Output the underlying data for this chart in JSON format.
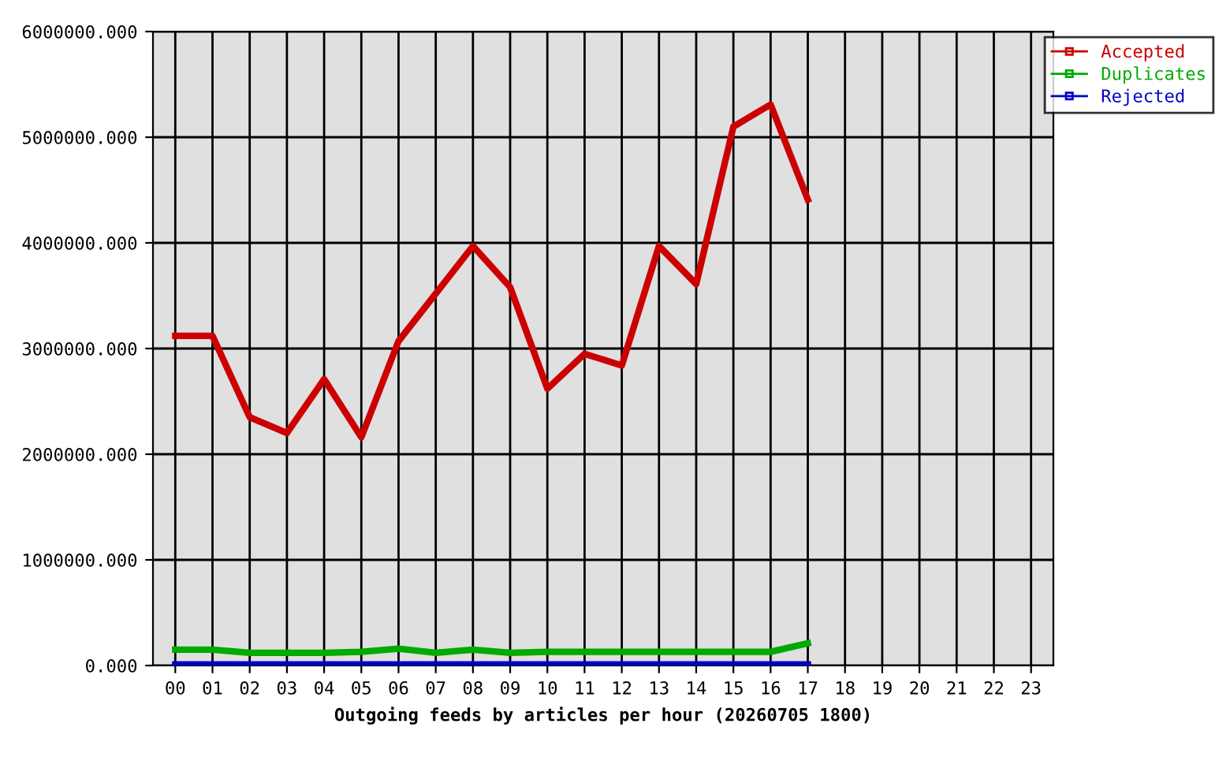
{
  "chart_data": {
    "type": "line",
    "xlabel": "Outgoing feeds by articles per hour (20260705 1800)",
    "categories": [
      "00",
      "01",
      "02",
      "03",
      "04",
      "05",
      "06",
      "07",
      "08",
      "09",
      "10",
      "11",
      "12",
      "13",
      "14",
      "15",
      "16",
      "17",
      "18",
      "19",
      "20",
      "21",
      "22",
      "23"
    ],
    "series": [
      {
        "name": "Accepted",
        "color": "#cc0000",
        "values": [
          3120000,
          3120000,
          2350000,
          2200000,
          2710000,
          2160000,
          3070000,
          3520000,
          3970000,
          3580000,
          2620000,
          2950000,
          2840000,
          3970000,
          3610000,
          5100000,
          5310000,
          4410000,
          null,
          null,
          null,
          null,
          null,
          null
        ]
      },
      {
        "name": "Duplicates",
        "color": "#00aa00",
        "values": [
          150000,
          150000,
          120000,
          120000,
          120000,
          130000,
          160000,
          120000,
          150000,
          120000,
          130000,
          130000,
          130000,
          130000,
          130000,
          130000,
          130000,
          210000,
          null,
          null,
          null,
          null,
          null,
          null
        ]
      },
      {
        "name": "Rejected",
        "color": "#0000cc",
        "values": [
          10000,
          10000,
          10000,
          10000,
          10000,
          10000,
          10000,
          10000,
          10000,
          10000,
          10000,
          10000,
          10000,
          10000,
          10000,
          10000,
          10000,
          10000,
          null,
          null,
          null,
          null,
          null,
          null
        ]
      }
    ],
    "ylim": [
      0,
      6000000
    ],
    "yticks": [
      {
        "value": 0,
        "label": "0.000"
      },
      {
        "value": 1000000,
        "label": "1000000.000"
      },
      {
        "value": 2000000,
        "label": "2000000.000"
      },
      {
        "value": 3000000,
        "label": "3000000.000"
      },
      {
        "value": 4000000,
        "label": "4000000.000"
      },
      {
        "value": 5000000,
        "label": "5000000.000"
      },
      {
        "value": 6000000,
        "label": "6000000.000"
      }
    ],
    "grid": true,
    "legend": "top right",
    "line_style": "solid",
    "marker": "none"
  }
}
